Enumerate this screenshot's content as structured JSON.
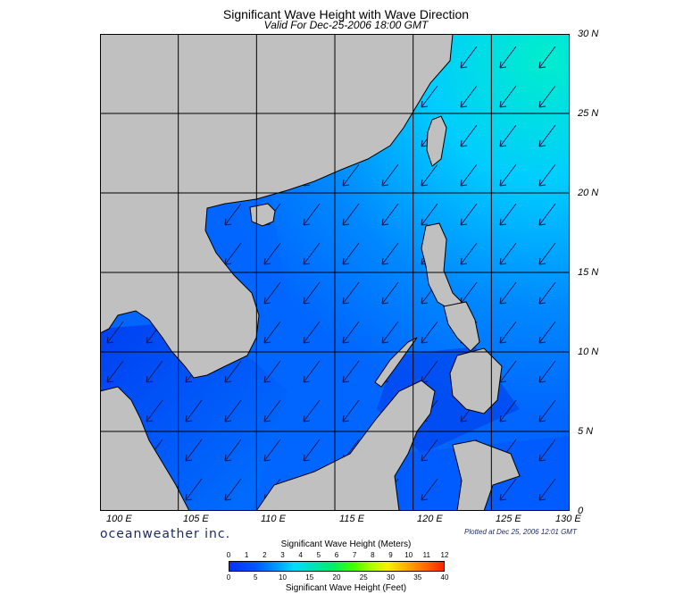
{
  "header": {
    "title": "Significant Wave Height with Wave Direction",
    "subtitle": "Valid For Dec-25-2006 18:00 GMT"
  },
  "map": {
    "lat_labels": [
      "30 N",
      "25 N",
      "20 N",
      "15 N",
      "10 N",
      "5 N",
      "0"
    ],
    "lon_labels": [
      "100 E",
      "105 E",
      "110 E",
      "115 E",
      "120 E",
      "125 E",
      "130 E"
    ],
    "lat_range": [
      0,
      30
    ],
    "lon_range": [
      100,
      130
    ],
    "grid_step_degrees": 5,
    "prevailing_wave_direction": "northeast to southwest",
    "colors": {
      "land": "#c0c0c0",
      "water_low": "#0044ff",
      "water_mid": "#0088ff",
      "water_high": "#00ccff",
      "water_peak": "#00eecc",
      "arrow": "#1a1a5a"
    }
  },
  "branding": {
    "logo": "oceanweather inc.",
    "plotted": "Plotted at Dec 25, 2006 12:01 GMT"
  },
  "legend": {
    "meters_title": "Significant Wave Height (Meters)",
    "feet_title": "Significant Wave Height (Feet)",
    "meters_ticks": [
      "0",
      "1",
      "2",
      "3",
      "4",
      "5",
      "6",
      "7",
      "8",
      "9",
      "10",
      "11",
      "12"
    ],
    "feet_ticks": [
      "0",
      "5",
      "10",
      "15",
      "20",
      "25",
      "30",
      "35",
      "40"
    ]
  }
}
